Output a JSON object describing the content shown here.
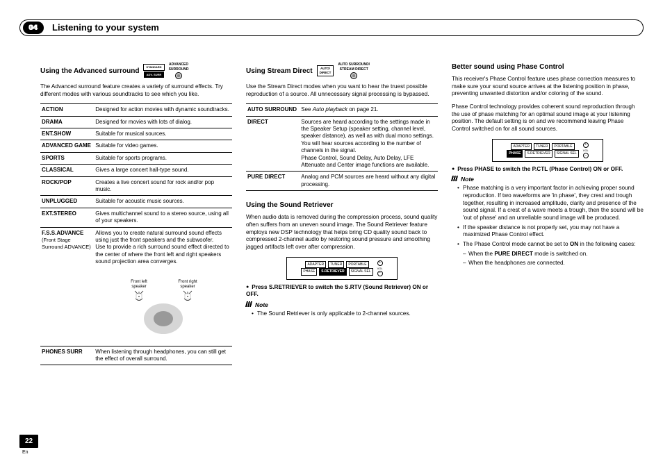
{
  "chapter": {
    "num": "04",
    "title": "Listening to your system"
  },
  "page": {
    "number": "22",
    "lang": "En"
  },
  "col1": {
    "title": "Using the Advanced surround",
    "badges": {
      "top": "STANDARD",
      "bottom": "ADV. SURR",
      "label": "ADVANCED\nSURROUND"
    },
    "intro": "The Advanced surround feature creates a variety of surround effects. Try different modes with various soundtracks to see which you like.",
    "rows": [
      {
        "k": "ACTION",
        "v": "Designed for action movies with dynamic soundtracks."
      },
      {
        "k": "DRAMA",
        "v": "Designed for movies with lots of dialog."
      },
      {
        "k": "ENT.SHOW",
        "v": "Suitable for musical sources."
      },
      {
        "k": "ADVANCED GAME",
        "v": "Suitable for video games."
      },
      {
        "k": "SPORTS",
        "v": "Suitable for sports programs."
      },
      {
        "k": "CLASSICAL",
        "v": "Gives a large concert hall-type sound."
      },
      {
        "k": "ROCK/POP",
        "v": "Creates a live concert sound for rock and/or pop music."
      },
      {
        "k": "UNPLUGGED",
        "v": "Suitable for acoustic music sources."
      },
      {
        "k": "EXT.STEREO",
        "v": "Gives multichannel sound to a stereo source, using all of your speakers."
      },
      {
        "k": "F.S.S.ADVANCE",
        "sub": "(Front Stage Surround ADVANCE)",
        "v": "Allows you to create natural surround sound effects using just the front speakers and the subwoofer.\nUse to provide a rich surround sound effect directed to the center of where the front left and right speakers sound projection area converges."
      },
      {
        "k": "PHONES SURR",
        "v": "When listening through headphones, you can still get the effect of overall surround."
      }
    ],
    "spk": {
      "left": "Front left\nspeaker",
      "right": "Front right\nspeaker"
    }
  },
  "col2a": {
    "title": "Using Stream Direct",
    "badges": {
      "btn": "AUTO/\nDIRECT",
      "label": "AUTO SURROUND/\nSTREAM DIRECT"
    },
    "intro": "Use the Stream Direct modes when you want to hear the truest possible reproduction of a source. All unnecessary signal processing is bypassed.",
    "rows": [
      {
        "k": "AUTO SURROUND",
        "v_pre": "See ",
        "v_it": "Auto playback",
        "v_post": " on page 21."
      },
      {
        "k": "DIRECT",
        "v": "Sources are heard according to the settings made in the Speaker Setup (speaker setting, channel level, speaker distance), as well as with dual mono settings. You will hear sources according to the number of channels in the signal.\nPhase Control, Sound Delay, Auto Delay, LFE Attenuate and Center image functions are available."
      },
      {
        "k": "PURE DIRECT",
        "v": "Analog and PCM sources are heard without any digital processing."
      }
    ]
  },
  "col2b": {
    "title": "Using the Sound Retriever",
    "intro": "When audio data is removed during the compression process, sound quality often suffers from an uneven sound image. The Sound Retriever feature employs new DSP technology that helps bring CD quality sound back to compressed 2-channel audio by restoring sound pressure and smoothing jagged artifacts left over after compression.",
    "panel": {
      "r1": [
        "ADAPTER",
        "TUNER",
        "PORTABLE"
      ],
      "r2": [
        "PHASE",
        "S.RETRIEVER",
        "SIGNAL SEL"
      ],
      "hl": 1,
      "vol": "VOL"
    },
    "action": "Press S.RETRIEVER to switch the S.RTV (Sound Retriever) ON or OFF.",
    "note": "Note",
    "noteItem": "The Sound Retriever is only applicable to 2-channel sources."
  },
  "col3": {
    "title": "Better sound using Phase Control",
    "p1": "This receiver's Phase Control feature uses phase correction measures to make sure your sound source arrives at the listening position in phase, preventing unwanted distortion and/or coloring of the sound.",
    "p2": "Phase Control technology provides coherent sound reproduction through the use of phase matching for an optimal sound image at your listening position. The default setting is on and we recommend leaving Phase Control switched on for all sound sources.",
    "panel": {
      "r1": [
        "ADAPTER",
        "TUNER",
        "PORTABLE"
      ],
      "r2": [
        "PHASE",
        "S.RETRIEVER",
        "SIGNAL SEL"
      ],
      "hl": 0,
      "vol": "VOL"
    },
    "action": "Press PHASE to switch the P.CTL (Phase Control) ON or OFF.",
    "note": "Note",
    "noteItems": [
      "Phase matching is a very important factor in achieving proper sound reproduction. If two waveforms are 'in phase', they crest and trough together, resulting in increased amplitude, clarity and presence of the sound signal. If a crest of a wave meets a trough, then the sound will be 'out of phase' and an unreliable sound image will be produced.",
      "If the speaker distance is not properly set, you may not have a maximized Phase Control effect."
    ],
    "noteItem3_a": "The Phase Control mode cannot be set to ",
    "noteItem3_b": "ON",
    "noteItem3_c": " in the following cases:",
    "dash1_a": "When the ",
    "dash1_b": "PURE DIRECT",
    "dash1_c": " mode is switched on.",
    "dash2": "When the headphones are connected."
  }
}
